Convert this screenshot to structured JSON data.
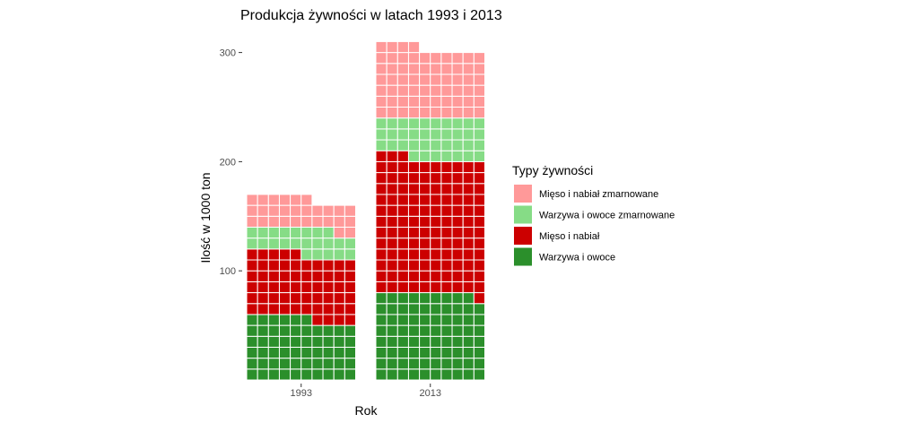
{
  "chart_data": {
    "type": "bar",
    "subtype": "waffle-stacked",
    "title": "Produkcja żywności w latach 1993 i 2013",
    "xlabel": "Rok",
    "ylabel": "Ilość w 1000 ton",
    "categories": [
      "1993",
      "2013"
    ],
    "ylim": [
      0,
      310
    ],
    "yticks": [
      100,
      200,
      300
    ],
    "units_per_row": 10,
    "columns_per_bar": 10,
    "grid": false,
    "legend": {
      "title": "Typy żywności",
      "position": "right"
    },
    "series": [
      {
        "name": "Warzywa i owoce",
        "values": [
          56,
          79
        ],
        "color": "#2b8f2b"
      },
      {
        "name": "Mięso i nabiał",
        "values": [
          59,
          124
        ],
        "color": "#cc0000"
      },
      {
        "name": "Warzywa i owoce zmarnowane",
        "values": [
          23,
          37
        ],
        "color": "#86dc86"
      },
      {
        "name": "Mięso i nabiał zmarnowane",
        "values": [
          28,
          64
        ],
        "color": "#ff9999"
      }
    ],
    "legend_order": [
      3,
      2,
      1,
      0
    ]
  }
}
